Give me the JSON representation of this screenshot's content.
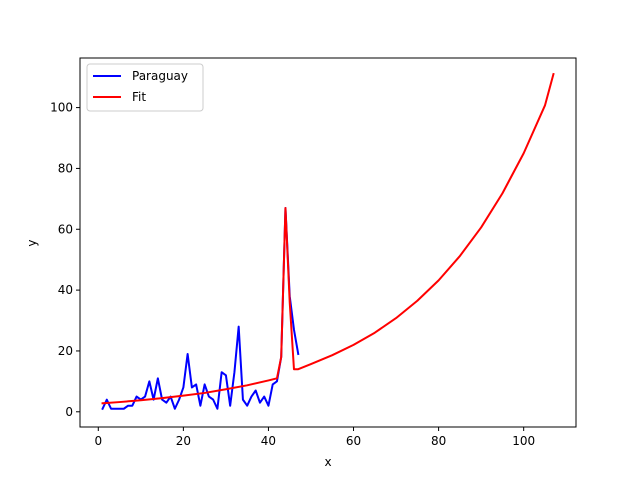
{
  "chart_data": {
    "type": "line",
    "title": "",
    "xlabel": "x",
    "ylabel": "y",
    "xlim": [
      -4.3,
      112.3
    ],
    "ylim": [
      -5.0,
      116.3
    ],
    "xticks": [
      0,
      20,
      40,
      60,
      80,
      100
    ],
    "yticks": [
      0,
      20,
      40,
      60,
      80,
      100
    ],
    "grid": false,
    "legend_position": "top-left",
    "series": [
      {
        "name": "Paraguay",
        "color": "#0000ff",
        "x": [
          1,
          2,
          3,
          4,
          5,
          6,
          7,
          8,
          9,
          10,
          11,
          12,
          13,
          14,
          15,
          16,
          17,
          18,
          19,
          20,
          21,
          22,
          23,
          24,
          25,
          26,
          27,
          28,
          29,
          30,
          31,
          32,
          33,
          34,
          35,
          36,
          37,
          38,
          39,
          40,
          41,
          42,
          43,
          44,
          45,
          46,
          47
        ],
        "y": [
          1,
          4,
          1,
          1,
          1,
          1,
          2,
          2,
          5,
          4,
          5,
          10,
          4,
          11,
          4,
          3,
          5,
          1,
          4,
          8,
          19,
          8,
          9,
          2,
          9,
          5,
          4,
          1,
          13,
          12,
          2,
          13,
          28,
          4,
          2,
          5,
          7,
          3,
          5,
          2,
          9,
          10,
          18,
          67,
          38,
          27,
          19
        ]
      },
      {
        "name": "Fit",
        "color": "#ff0000",
        "x": [
          1,
          5,
          10,
          15,
          20,
          25,
          30,
          35,
          40,
          42,
          43,
          44,
          45,
          46,
          47,
          50,
          55,
          60,
          65,
          70,
          75,
          80,
          85,
          90,
          95,
          100,
          105,
          107
        ],
        "y": [
          2.8,
          3.2,
          3.8,
          4.5,
          5.3,
          6.2,
          7.4,
          8.7,
          10.3,
          11.0,
          18.0,
          67.0,
          36.0,
          14.0,
          14.0,
          15.7,
          18.6,
          22.0,
          26.0,
          30.8,
          36.5,
          43.2,
          51.2,
          60.6,
          71.8,
          85.0,
          100.7,
          111.0
        ]
      }
    ]
  }
}
